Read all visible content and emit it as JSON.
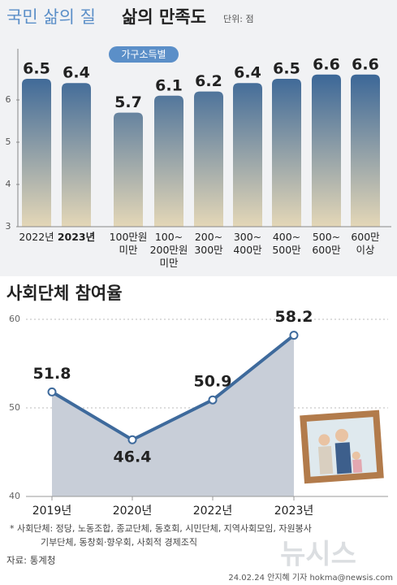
{
  "chart_data": [
    {
      "type": "bar",
      "kicker": "국민 삶의 질",
      "title": "삶의 만족도",
      "unit_note": "단위: 점",
      "group_label": "가구소득별",
      "categories": [
        "2022년",
        "2023년",
        "100만원\n미만",
        "100~\n200만원\n미만",
        "200~\n300만",
        "300~\n400만",
        "400~\n500만",
        "500~\n600만",
        "600만\n이상"
      ],
      "values": [
        6.5,
        6.4,
        5.7,
        6.1,
        6.2,
        6.4,
        6.5,
        6.6,
        6.6
      ],
      "colors": [
        "#3a6697",
        "#e4d7b7"
      ],
      "ylim": [
        3,
        7
      ],
      "yticks": [
        3,
        4,
        5,
        6
      ]
    },
    {
      "type": "line",
      "title": "사회단체 참여율",
      "categories": [
        "2019년",
        "2020년",
        "2022년",
        "2023년"
      ],
      "values": [
        51.8,
        46.4,
        50.9,
        58.2
      ],
      "color": "#3e6a9c",
      "area_color": "#c8ced8",
      "ylim": [
        40,
        60
      ],
      "yticks": [
        40,
        50,
        60
      ],
      "grid": true
    }
  ],
  "notes": {
    "footnote": [
      "* 사회단체: 정당, 노동조합, 종교단체, 동호회, 시민단체, 지역사회모임, 자원봉사",
      "기부단체, 동창회·향우회, 사회적 경제조직"
    ],
    "source": "자료: 통계청",
    "credit": "24.02.24 안지혜 기자 hokma@newsis.com",
    "watermark": "뉴시스"
  }
}
